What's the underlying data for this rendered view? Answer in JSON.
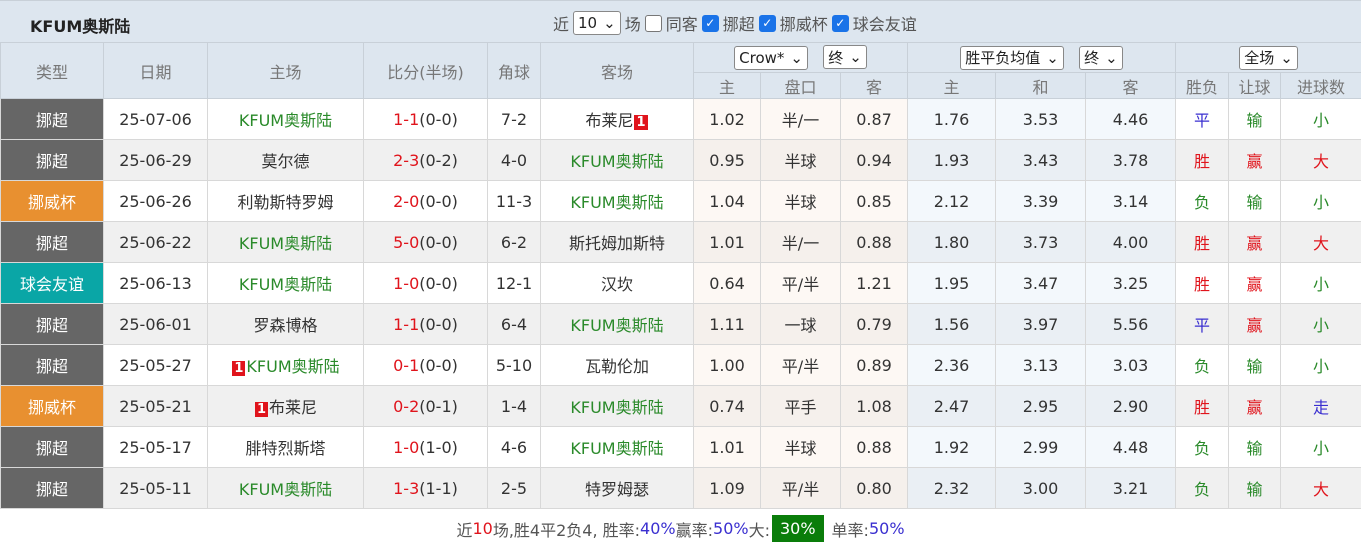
{
  "header": {
    "title": "KFUM奥斯陆",
    "recent_prefix": "近",
    "recent_value": "10",
    "recent_suffix": "场",
    "same_host_label": "同客",
    "filters": [
      {
        "label": "挪超",
        "checked": true
      },
      {
        "label": "挪威杯",
        "checked": true
      },
      {
        "label": "球会友谊",
        "checked": true
      }
    ]
  },
  "columns": {
    "type": "类型",
    "date": "日期",
    "home": "主场",
    "score": "比分(半场)",
    "corner": "角球",
    "away": "客场",
    "company_select": "Crow*",
    "company_stage": "终",
    "odds_select": "胜平负均值",
    "odds_stage": "终",
    "scope_select": "全场",
    "ah_home": "主",
    "ah_line": "盘口",
    "ah_away": "客",
    "eu_home": "主",
    "eu_draw": "和",
    "eu_away": "客",
    "wl": "胜负",
    "handicap": "让球",
    "goals": "进球数"
  },
  "colors": {
    "挪超": "#666666",
    "挪威杯": "#e89030",
    "球会友谊": "#0aa6a6",
    "team_green": "#2a8a2a",
    "red": "#e0141c",
    "blue": "#3a2fd0"
  },
  "rows": [
    {
      "type": "挪超",
      "date": "25-07-06",
      "home": "KFUM奥斯陆",
      "home_card": "",
      "score": "1-1",
      "half": "(0-0)",
      "corner": "7-2",
      "away": "布莱尼",
      "away_card": "1",
      "ah_h": "1.02",
      "ah_line": "半/一",
      "ah_a": "0.87",
      "eu_h": "1.76",
      "eu_d": "3.53",
      "eu_a": "4.46",
      "wl": "平",
      "hc": "输",
      "goals": "小"
    },
    {
      "type": "挪超",
      "date": "25-06-29",
      "home": "莫尔德",
      "home_card": "",
      "score": "2-3",
      "half": "(0-2)",
      "corner": "4-0",
      "away": "KFUM奥斯陆",
      "away_card": "",
      "ah_h": "0.95",
      "ah_line": "半球",
      "ah_a": "0.94",
      "eu_h": "1.93",
      "eu_d": "3.43",
      "eu_a": "3.78",
      "wl": "胜",
      "hc": "赢",
      "goals": "大"
    },
    {
      "type": "挪威杯",
      "date": "25-06-26",
      "home": "利勒斯特罗姆",
      "home_card": "",
      "score": "2-0",
      "half": "(0-0)",
      "corner": "11-3",
      "away": "KFUM奥斯陆",
      "away_card": "",
      "ah_h": "1.04",
      "ah_line": "半球",
      "ah_a": "0.85",
      "eu_h": "2.12",
      "eu_d": "3.39",
      "eu_a": "3.14",
      "wl": "负",
      "hc": "输",
      "goals": "小"
    },
    {
      "type": "挪超",
      "date": "25-06-22",
      "home": "KFUM奥斯陆",
      "home_card": "",
      "score": "5-0",
      "half": "(0-0)",
      "corner": "6-2",
      "away": "斯托姆加斯特",
      "away_card": "",
      "ah_h": "1.01",
      "ah_line": "半/一",
      "ah_a": "0.88",
      "eu_h": "1.80",
      "eu_d": "3.73",
      "eu_a": "4.00",
      "wl": "胜",
      "hc": "赢",
      "goals": "大"
    },
    {
      "type": "球会友谊",
      "date": "25-06-13",
      "home": "KFUM奥斯陆",
      "home_card": "",
      "score": "1-0",
      "half": "(0-0)",
      "corner": "12-1",
      "away": "汉坎",
      "away_card": "",
      "ah_h": "0.64",
      "ah_line": "平/半",
      "ah_a": "1.21",
      "eu_h": "1.95",
      "eu_d": "3.47",
      "eu_a": "3.25",
      "wl": "胜",
      "hc": "赢",
      "goals": "小"
    },
    {
      "type": "挪超",
      "date": "25-06-01",
      "home": "罗森博格",
      "home_card": "",
      "score": "1-1",
      "half": "(0-0)",
      "corner": "6-4",
      "away": "KFUM奥斯陆",
      "away_card": "",
      "ah_h": "1.11",
      "ah_line": "一球",
      "ah_a": "0.79",
      "eu_h": "1.56",
      "eu_d": "3.97",
      "eu_a": "5.56",
      "wl": "平",
      "hc": "赢",
      "goals": "小"
    },
    {
      "type": "挪超",
      "date": "25-05-27",
      "home": "KFUM奥斯陆",
      "home_card": "1",
      "score": "0-1",
      "half": "(0-0)",
      "corner": "5-10",
      "away": "瓦勒伦加",
      "away_card": "",
      "ah_h": "1.00",
      "ah_line": "平/半",
      "ah_a": "0.89",
      "eu_h": "2.36",
      "eu_d": "3.13",
      "eu_a": "3.03",
      "wl": "负",
      "hc": "输",
      "goals": "小"
    },
    {
      "type": "挪威杯",
      "date": "25-05-21",
      "home": "布莱尼",
      "home_card": "1",
      "score": "0-2",
      "half": "(0-1)",
      "corner": "1-4",
      "away": "KFUM奥斯陆",
      "away_card": "",
      "ah_h": "0.74",
      "ah_line": "平手",
      "ah_a": "1.08",
      "eu_h": "2.47",
      "eu_d": "2.95",
      "eu_a": "2.90",
      "wl": "胜",
      "hc": "赢",
      "goals": "走"
    },
    {
      "type": "挪超",
      "date": "25-05-17",
      "home": "腓特烈斯塔",
      "home_card": "",
      "score": "1-0",
      "half": "(1-0)",
      "corner": "4-6",
      "away": "KFUM奥斯陆",
      "away_card": "",
      "ah_h": "1.01",
      "ah_line": "半球",
      "ah_a": "0.88",
      "eu_h": "1.92",
      "eu_d": "2.99",
      "eu_a": "4.48",
      "wl": "负",
      "hc": "输",
      "goals": "小"
    },
    {
      "type": "挪超",
      "date": "25-05-11",
      "home": "KFUM奥斯陆",
      "home_card": "",
      "score": "1-3",
      "half": "(1-1)",
      "corner": "2-5",
      "away": "特罗姆瑟",
      "away_card": "",
      "ah_h": "1.09",
      "ah_line": "平/半",
      "ah_a": "0.80",
      "eu_h": "2.32",
      "eu_d": "3.00",
      "eu_a": "3.21",
      "wl": "负",
      "hc": "输",
      "goals": "大"
    }
  ],
  "footer": {
    "p1": "近",
    "n": "10",
    "p2": "场,胜4平2负4, 胜率:",
    "win_rate": "40%",
    "p3": " 赢率:",
    "cover_rate": "50%",
    "p4": " 大:",
    "over_rate": "30%",
    "p5": " 单率:",
    "odd_rate": "50%"
  }
}
